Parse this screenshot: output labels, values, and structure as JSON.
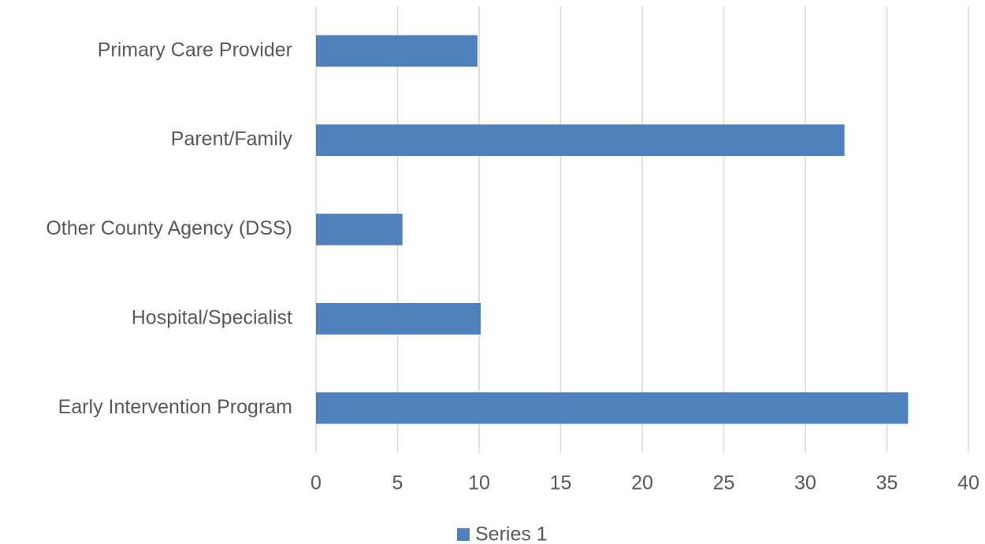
{
  "chart_data": {
    "type": "hbar",
    "categories": [
      "Primary Care Provider",
      "Parent/Family",
      "Other County Agency (DSS)",
      "Hospital/Specialist",
      "Early Intervention Program"
    ],
    "series": [
      {
        "name": "Series 1",
        "color": "#4f81bd",
        "values": [
          9.9,
          32.4,
          5.3,
          10.1,
          36.3
        ]
      }
    ],
    "xlim": [
      0,
      40
    ],
    "xticks": [
      0,
      5,
      10,
      15,
      20,
      25,
      30,
      35,
      40
    ],
    "grid": true,
    "legend": "bottom"
  }
}
